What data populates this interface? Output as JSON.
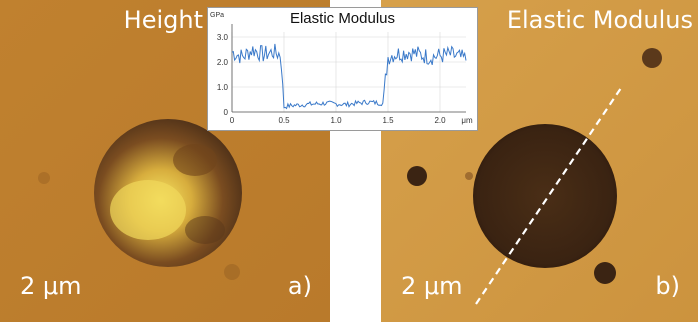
{
  "panel_a": {
    "title": "Height",
    "scale_label": "2 μm",
    "letter": "a)",
    "colors": {
      "background": "#bd7e2c",
      "particle_rim": "#4a2e17",
      "particle_core": "#f4e060"
    }
  },
  "panel_b": {
    "title": "Elastic Modulus",
    "scale_label": "2 μm",
    "letter": "b)",
    "colors": {
      "background": "#d29a45",
      "particle": "#3a2312",
      "line": "#ffffff"
    }
  },
  "inset": {
    "title": "Elastic Modulus",
    "y_unit": "GPa",
    "x_unit": "μm",
    "y_ticks": [
      "0",
      "1.0",
      "2.0",
      "3.0"
    ],
    "x_ticks": [
      "0",
      "0.5",
      "1.0",
      "1.5",
      "2.0"
    ],
    "line_color": "#3a79c9"
  },
  "chart_data": {
    "type": "line",
    "title": "Elastic Modulus",
    "xlabel": "μm",
    "ylabel": "GPa",
    "xlim": [
      0,
      2.25
    ],
    "ylim": [
      0,
      3.2
    ],
    "series": [
      {
        "x": [
          0,
          0.1,
          0.2,
          0.3,
          0.4,
          0.47,
          0.5,
          0.55,
          0.7,
          0.9,
          1.1,
          1.3,
          1.45,
          1.5,
          1.55,
          1.7,
          1.9,
          2.1,
          2.25
        ],
        "values": [
          2.4,
          2.2,
          2.5,
          2.3,
          2.4,
          2.3,
          0.2,
          0.25,
          0.3,
          0.35,
          0.3,
          0.4,
          0.35,
          2.2,
          2.3,
          2.4,
          2.2,
          2.3,
          2.1
        ]
      }
    ]
  }
}
